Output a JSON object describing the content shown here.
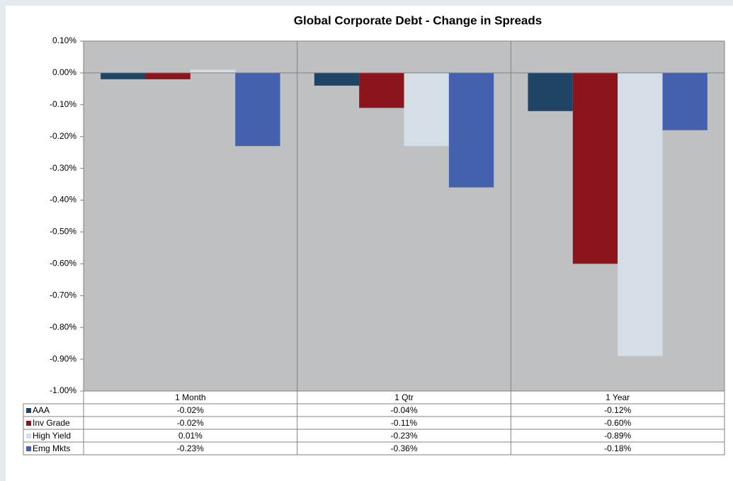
{
  "chart_data": {
    "type": "bar",
    "title": "Global Corporate Debt - Change in Spreads",
    "categories": [
      "1 Month",
      "1 Qtr",
      "1 Year"
    ],
    "series": [
      {
        "name": "AAA",
        "color": "#1f4466",
        "values": [
          -0.02,
          -0.04,
          -0.12
        ],
        "value_labels": [
          "-0.02%",
          "-0.04%",
          "-0.12%"
        ]
      },
      {
        "name": "Inv Grade",
        "color": "#8b151b",
        "values": [
          -0.02,
          -0.11,
          -0.6
        ],
        "value_labels": [
          "-0.02%",
          "-0.11%",
          "-0.60%"
        ]
      },
      {
        "name": "High Yield",
        "color": "#d4dee6",
        "values": [
          0.01,
          -0.23,
          -0.89
        ],
        "value_labels": [
          "0.01%",
          "-0.23%",
          "-0.89%"
        ]
      },
      {
        "name": "Emg Mkts",
        "color": "#4561ad",
        "values": [
          -0.23,
          -0.36,
          -0.18
        ],
        "value_labels": [
          "-0.23%",
          "-0.36%",
          "-0.18%"
        ]
      }
    ],
    "ylim": [
      -1.0,
      0.1
    ],
    "yticks": [
      {
        "value": 0.1,
        "label": "0.10%"
      },
      {
        "value": 0,
        "label": "0.00%"
      },
      {
        "value": -0.1,
        "label": "-0.10%"
      },
      {
        "value": -0.2,
        "label": "-0.20%"
      },
      {
        "value": -0.3,
        "label": "-0.30%"
      },
      {
        "value": -0.4,
        "label": "-0.40%"
      },
      {
        "value": -0.5,
        "label": "-0.50%"
      },
      {
        "value": -0.6,
        "label": "-0.60%"
      },
      {
        "value": -0.7,
        "label": "-0.70%"
      },
      {
        "value": -0.8,
        "label": "-0.80%"
      },
      {
        "value": -0.9,
        "label": "-0.90%"
      },
      {
        "value": -1.0,
        "label": "-1.00%"
      }
    ],
    "grid": false
  }
}
